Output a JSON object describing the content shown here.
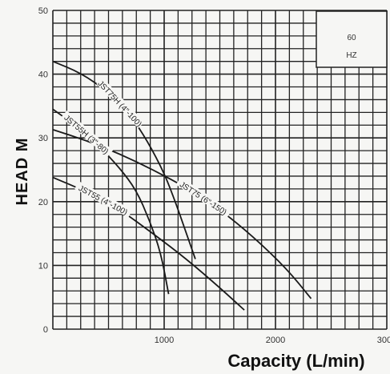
{
  "chart_data": {
    "type": "line",
    "xlabel": "Capacity (L/min)",
    "ylabel": "HEAD M",
    "xlim": [
      0,
      3000
    ],
    "ylim": [
      0,
      50
    ],
    "x_ticks": [
      "1000",
      "2000",
      "3000"
    ],
    "y_ticks": [
      "0",
      "10",
      "20",
      "30",
      "40",
      "50"
    ],
    "grid": true,
    "annotation": {
      "line1": "60",
      "line2": "HZ"
    },
    "series": [
      {
        "name": "JST75H (4\"-100)",
        "points": [
          [
            0,
            42
          ],
          [
            250,
            40.2
          ],
          [
            500,
            37.2
          ],
          [
            700,
            33.5
          ],
          [
            850,
            29.5
          ],
          [
            1000,
            24.5
          ],
          [
            1100,
            20
          ],
          [
            1200,
            15
          ],
          [
            1280,
            11
          ]
        ]
      },
      {
        "name": "JST55H (3\"-80)",
        "points": [
          [
            0,
            34.5
          ],
          [
            200,
            32
          ],
          [
            400,
            29
          ],
          [
            600,
            25.3
          ],
          [
            750,
            21.8
          ],
          [
            870,
            17
          ],
          [
            970,
            12
          ],
          [
            1040,
            5.5
          ]
        ]
      },
      {
        "name": "JST75 (6\"-150)",
        "points": [
          [
            0,
            31.3
          ],
          [
            300,
            29.6
          ],
          [
            600,
            27.5
          ],
          [
            900,
            25
          ],
          [
            1200,
            22.2
          ],
          [
            1500,
            18.8
          ],
          [
            1800,
            14.5
          ],
          [
            2100,
            9.5
          ],
          [
            2320,
            4.8
          ]
        ]
      },
      {
        "name": "JST55 (4\"-100)",
        "points": [
          [
            0,
            23.8
          ],
          [
            300,
            21.6
          ],
          [
            600,
            18.8
          ],
          [
            900,
            15
          ],
          [
            1200,
            11
          ],
          [
            1500,
            6.5
          ],
          [
            1720,
            3
          ]
        ]
      }
    ]
  }
}
